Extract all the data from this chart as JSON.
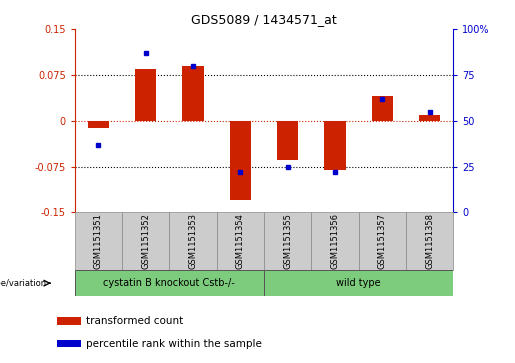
{
  "title": "GDS5089 / 1434571_at",
  "samples": [
    "GSM1151351",
    "GSM1151352",
    "GSM1151353",
    "GSM1151354",
    "GSM1151355",
    "GSM1151356",
    "GSM1151357",
    "GSM1151358"
  ],
  "transformed_count": [
    -0.012,
    0.085,
    0.09,
    -0.13,
    -0.065,
    -0.08,
    0.04,
    0.01
  ],
  "percentile_rank_raw": [
    37,
    87,
    80,
    22,
    25,
    22,
    62,
    55
  ],
  "group1_label": "cystatin B knockout Cstb-/-",
  "group2_label": "wild type",
  "group1_color": "#7dcc7d",
  "group2_color": "#7dcc7d",
  "bar_color": "#cc2200",
  "dot_color": "#0000cc",
  "ylim_left": [
    -0.15,
    0.15
  ],
  "ylim_right": [
    0,
    100
  ],
  "yticks_left": [
    -0.15,
    -0.075,
    0,
    0.075,
    0.15
  ],
  "yticks_right": [
    0,
    25,
    50,
    75,
    100
  ],
  "ytick_labels_left": [
    "-0.15",
    "-0.075",
    "0",
    "0.075",
    "0.15"
  ],
  "ytick_labels_right": [
    "0",
    "25",
    "50",
    "75",
    "100%"
  ],
  "hlines_black": [
    0.075,
    -0.075
  ],
  "hline_red": 0,
  "genotype_label": "genotype/variation",
  "legend_red": "transformed count",
  "legend_blue": "percentile rank within the sample",
  "background_plot": "#ffffff",
  "background_sample": "#cccccc",
  "n_group1": 4,
  "n_group2": 4
}
